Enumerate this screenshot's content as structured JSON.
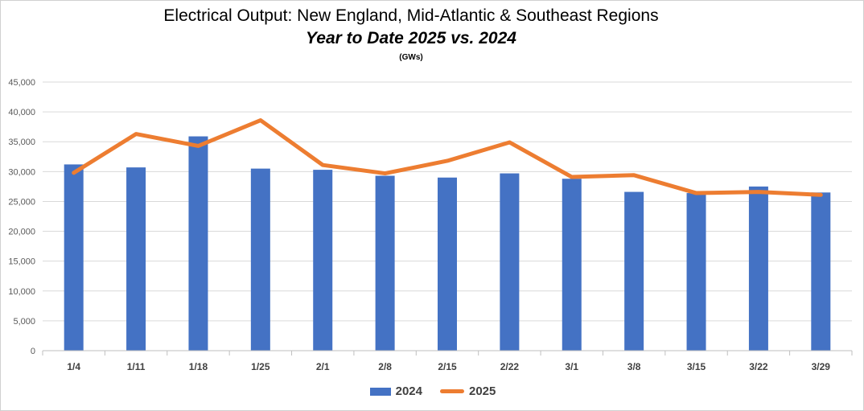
{
  "chart_data": {
    "type": "bar+line",
    "title": "Electrical Output:  New England, Mid-Atlantic & Southeast Regions",
    "subtitle": "Year to Date 2025 vs. 2024",
    "unit": "(GWs)",
    "categories": [
      "1/4",
      "1/11",
      "1/18",
      "1/25",
      "2/1",
      "2/8",
      "2/15",
      "2/22",
      "3/1",
      "3/8",
      "3/15",
      "3/22",
      "3/29"
    ],
    "y_ticks": [
      "0",
      "5,000",
      "10,000",
      "15,000",
      "20,000",
      "25,000",
      "30,000",
      "35,000",
      "40,000",
      "45,000"
    ],
    "ylim": [
      0,
      45000
    ],
    "grid": true,
    "legend_position": "bottom",
    "series": [
      {
        "name": "2024",
        "type": "bar",
        "color": "#4472c4",
        "values": [
          31200,
          30700,
          35900,
          30500,
          30300,
          29300,
          29000,
          29700,
          28800,
          26600,
          26400,
          27500,
          26500
        ]
      },
      {
        "name": "2025",
        "type": "line",
        "color": "#ed7d31",
        "values": [
          29800,
          36300,
          34300,
          38600,
          31100,
          29700,
          31800,
          34900,
          29100,
          29400,
          26400,
          26600,
          26100
        ]
      }
    ]
  }
}
